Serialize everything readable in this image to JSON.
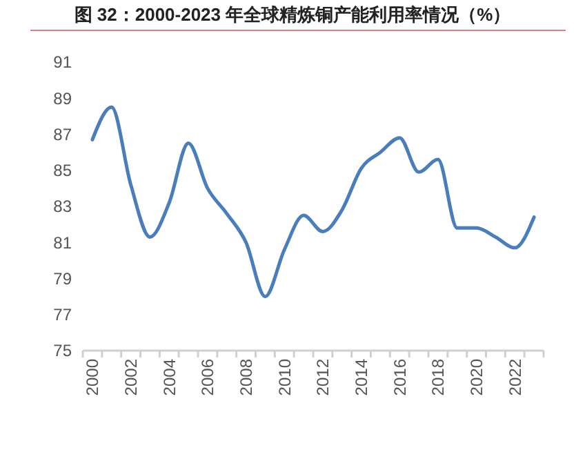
{
  "chart_data": {
    "type": "line",
    "title": "图 32：2000-2023 年全球精炼铜产能利用率情况（%）",
    "categories": [
      "2000",
      null,
      "2002",
      null,
      "2004",
      null,
      "2006",
      null,
      "2008",
      null,
      "2010",
      null,
      "2012",
      null,
      "2014",
      null,
      "2016",
      null,
      "2018",
      null,
      "2020",
      null,
      "2022",
      null
    ],
    "series": [
      {
        "color": "#4a7ebb",
        "values": [
          86.7,
          88.5,
          84.2,
          81.3,
          83.2,
          86.5,
          84.0,
          82.6,
          81.0,
          78.0,
          80.6,
          82.5,
          81.6,
          82.8,
          85.1,
          86.0,
          86.8,
          84.9,
          85.6,
          81.8,
          81.8,
          81.3,
          80.7,
          82.4
        ]
      }
    ],
    "ylim": [
      75,
      91
    ],
    "yticks": [
      75,
      77,
      79,
      81,
      83,
      85,
      87,
      89,
      91
    ],
    "grid": false,
    "marker": "none",
    "line_style": "solid"
  }
}
